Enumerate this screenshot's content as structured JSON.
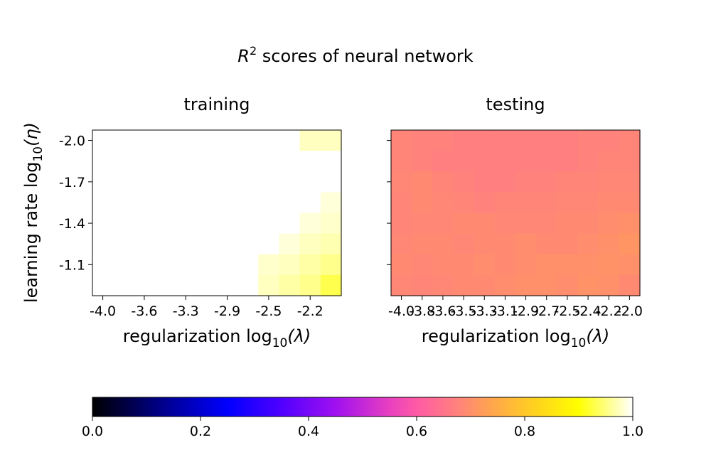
{
  "suptitle": {
    "base": "R",
    "sup": "2",
    "rest": " scores of neural network"
  },
  "colormap": {
    "name": "gnuplot2",
    "stops": [
      {
        "v": 0.0,
        "c": "#000000"
      },
      {
        "v": 0.12,
        "c": "#000083"
      },
      {
        "v": 0.25,
        "c": "#0000ff"
      },
      {
        "v": 0.35,
        "c": "#5000ff"
      },
      {
        "v": 0.45,
        "c": "#a010f0"
      },
      {
        "v": 0.55,
        "c": "#e840c0"
      },
      {
        "v": 0.6,
        "c": "#ff5aa5"
      },
      {
        "v": 0.67,
        "c": "#ff7f80"
      },
      {
        "v": 0.74,
        "c": "#ffa64d"
      },
      {
        "v": 0.82,
        "c": "#ffd21e"
      },
      {
        "v": 0.9,
        "c": "#ffff00"
      },
      {
        "v": 1.0,
        "c": "#ffffff"
      }
    ]
  },
  "colorbar": {
    "ticks": [
      0.0,
      0.2,
      0.4,
      0.6,
      0.8,
      1.0
    ],
    "tick_labels": [
      "0.0",
      "0.2",
      "0.4",
      "0.6",
      "0.8",
      "1.0"
    ]
  },
  "chart_data": [
    {
      "type": "heatmap",
      "title": "training",
      "xlabel": {
        "text": "regularization log",
        "sub": "10",
        "arg": "(λ)"
      },
      "ylabel": {
        "text": "learning rate log",
        "sub": "10",
        "arg": "(η)"
      },
      "x_tick_labels": [
        "-4.0",
        "-3.6",
        "-3.3",
        "-2.9",
        "-2.5",
        "-2.2"
      ],
      "x_tick_cols": [
        0.5,
        2.5,
        4.5,
        6.5,
        8.5,
        10.5
      ],
      "y_tick_labels": [
        "-2.0",
        "-1.7",
        "-1.4",
        "-1.1"
      ],
      "y_tick_rows": [
        0.5,
        2.5,
        4.5,
        6.5
      ],
      "n_cols": 12,
      "n_rows": 8,
      "vmin": 0.0,
      "vmax": 1.0,
      "values": [
        [
          1.0,
          1.0,
          1.0,
          1.0,
          1.0,
          1.0,
          1.0,
          1.0,
          1.0,
          1.0,
          0.975,
          0.975
        ],
        [
          1.0,
          1.0,
          1.0,
          1.0,
          1.0,
          1.0,
          1.0,
          1.0,
          1.0,
          1.0,
          1.0,
          1.0
        ],
        [
          1.0,
          1.0,
          1.0,
          1.0,
          1.0,
          1.0,
          1.0,
          1.0,
          1.0,
          1.0,
          1.0,
          1.0
        ],
        [
          1.0,
          1.0,
          1.0,
          1.0,
          1.0,
          1.0,
          1.0,
          1.0,
          1.0,
          1.0,
          1.0,
          0.985
        ],
        [
          1.0,
          1.0,
          1.0,
          1.0,
          1.0,
          1.0,
          1.0,
          1.0,
          1.0,
          1.0,
          0.985,
          0.98
        ],
        [
          1.0,
          1.0,
          1.0,
          1.0,
          1.0,
          1.0,
          1.0,
          1.0,
          1.0,
          0.985,
          0.975,
          0.97
        ],
        [
          1.0,
          1.0,
          1.0,
          1.0,
          1.0,
          1.0,
          1.0,
          1.0,
          0.98,
          0.975,
          0.965,
          0.955
        ],
        [
          1.0,
          1.0,
          1.0,
          1.0,
          1.0,
          1.0,
          1.0,
          1.0,
          0.975,
          0.965,
          0.955,
          0.93
        ]
      ]
    },
    {
      "type": "heatmap",
      "title": "testing",
      "xlabel": {
        "text": "regularization log",
        "sub": "10",
        "arg": "(λ)"
      },
      "x_tick_labels": [
        "-4.0",
        "-3.8",
        "-3.6",
        "-3.5",
        "-3.3",
        "-3.1",
        "-2.9",
        "-2.7",
        "-2.5",
        "-2.4",
        "-2.2",
        "-2.0"
      ],
      "x_tick_cols": [
        0.5,
        1.5,
        2.5,
        3.5,
        4.5,
        5.5,
        6.5,
        7.5,
        8.5,
        9.5,
        10.5,
        11.5
      ],
      "y_tick_rows": [
        0.5,
        2.5,
        4.5,
        6.5
      ],
      "n_cols": 12,
      "n_rows": 8,
      "vmin": 0.0,
      "vmax": 1.0,
      "values": [
        [
          0.68,
          0.675,
          0.675,
          0.67,
          0.67,
          0.67,
          0.67,
          0.67,
          0.67,
          0.675,
          0.675,
          0.68
        ],
        [
          0.68,
          0.675,
          0.67,
          0.67,
          0.67,
          0.67,
          0.67,
          0.67,
          0.67,
          0.675,
          0.68,
          0.68
        ],
        [
          0.685,
          0.69,
          0.68,
          0.675,
          0.67,
          0.67,
          0.675,
          0.675,
          0.68,
          0.68,
          0.685,
          0.685
        ],
        [
          0.68,
          0.69,
          0.685,
          0.68,
          0.675,
          0.68,
          0.68,
          0.68,
          0.685,
          0.685,
          0.69,
          0.69
        ],
        [
          0.68,
          0.685,
          0.685,
          0.69,
          0.69,
          0.685,
          0.685,
          0.685,
          0.69,
          0.69,
          0.695,
          0.7
        ],
        [
          0.685,
          0.69,
          0.69,
          0.685,
          0.69,
          0.69,
          0.695,
          0.69,
          0.69,
          0.695,
          0.7,
          0.71
        ],
        [
          0.69,
          0.685,
          0.69,
          0.69,
          0.695,
          0.69,
          0.695,
          0.7,
          0.7,
          0.7,
          0.705,
          0.7
        ],
        [
          0.685,
          0.68,
          0.685,
          0.69,
          0.69,
          0.695,
          0.7,
          0.7,
          0.695,
          0.705,
          0.7,
          0.69
        ]
      ]
    }
  ]
}
